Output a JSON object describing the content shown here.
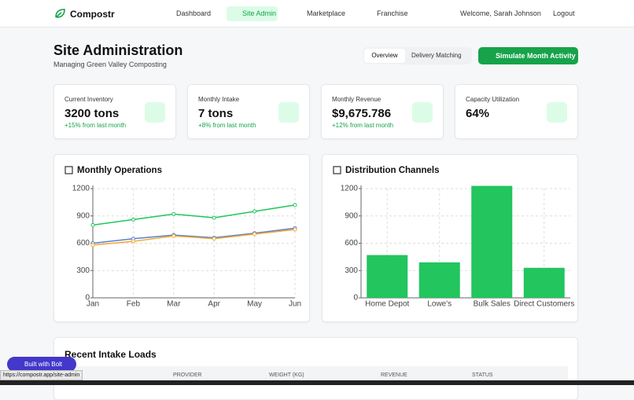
{
  "nav": {
    "brand": "Compostr",
    "items": [
      "Dashboard",
      "Site Admin",
      "Marketplace",
      "Franchise"
    ],
    "welcome": "Welcome, Sarah Johnson",
    "logout": "Logout"
  },
  "header": {
    "title": "Site Administration",
    "subtitle": "Managing Green Valley Composting",
    "tabs": [
      "Overview",
      "Delivery Matching"
    ],
    "button": "Simulate Month Activity"
  },
  "stats": [
    {
      "label": "Current Inventory",
      "value": "3200 tons",
      "change": "+15% from last month"
    },
    {
      "label": "Monthly Intake",
      "value": "7 tons",
      "change": "+8% from last month"
    },
    {
      "label": "Monthly Revenue",
      "value": "$9,675.786",
      "change": "+12% from last month"
    },
    {
      "label": "Capacity Utilization",
      "value": "64%"
    }
  ],
  "chart_data": [
    {
      "type": "line",
      "title": "Monthly Operations",
      "categories": [
        "Jan",
        "Feb",
        "Mar",
        "Apr",
        "May",
        "Jun"
      ],
      "series": [
        {
          "color": "#22c55e",
          "values": [
            800,
            860,
            920,
            880,
            950,
            1020
          ]
        },
        {
          "color": "#5b7fd6",
          "values": [
            600,
            650,
            690,
            660,
            710,
            765
          ]
        },
        {
          "color": "#f0a92a",
          "values": [
            580,
            620,
            680,
            650,
            700,
            750
          ]
        }
      ],
      "ylim": [
        0,
        1200
      ],
      "yticks": [
        0,
        300,
        600,
        900,
        1200
      ],
      "grid": true
    },
    {
      "type": "bar",
      "title": "Distribution Channels",
      "categories": [
        "Home Depot",
        "Lowe's",
        "Bulk Sales",
        "Direct Customers"
      ],
      "values": [
        470,
        390,
        1230,
        330
      ],
      "color": "#22c55e",
      "ylim": [
        0,
        1200
      ],
      "yticks": [
        0,
        300,
        600,
        900,
        1200
      ],
      "grid": true
    }
  ],
  "table": {
    "title": "Recent Intake Loads",
    "columns": [
      "PROVIDER",
      "WEIGHT (KG)",
      "REVENUE",
      "STATUS"
    ]
  },
  "badge": "Built with Bolt",
  "status_url": "https://compostr.app/site-admin"
}
